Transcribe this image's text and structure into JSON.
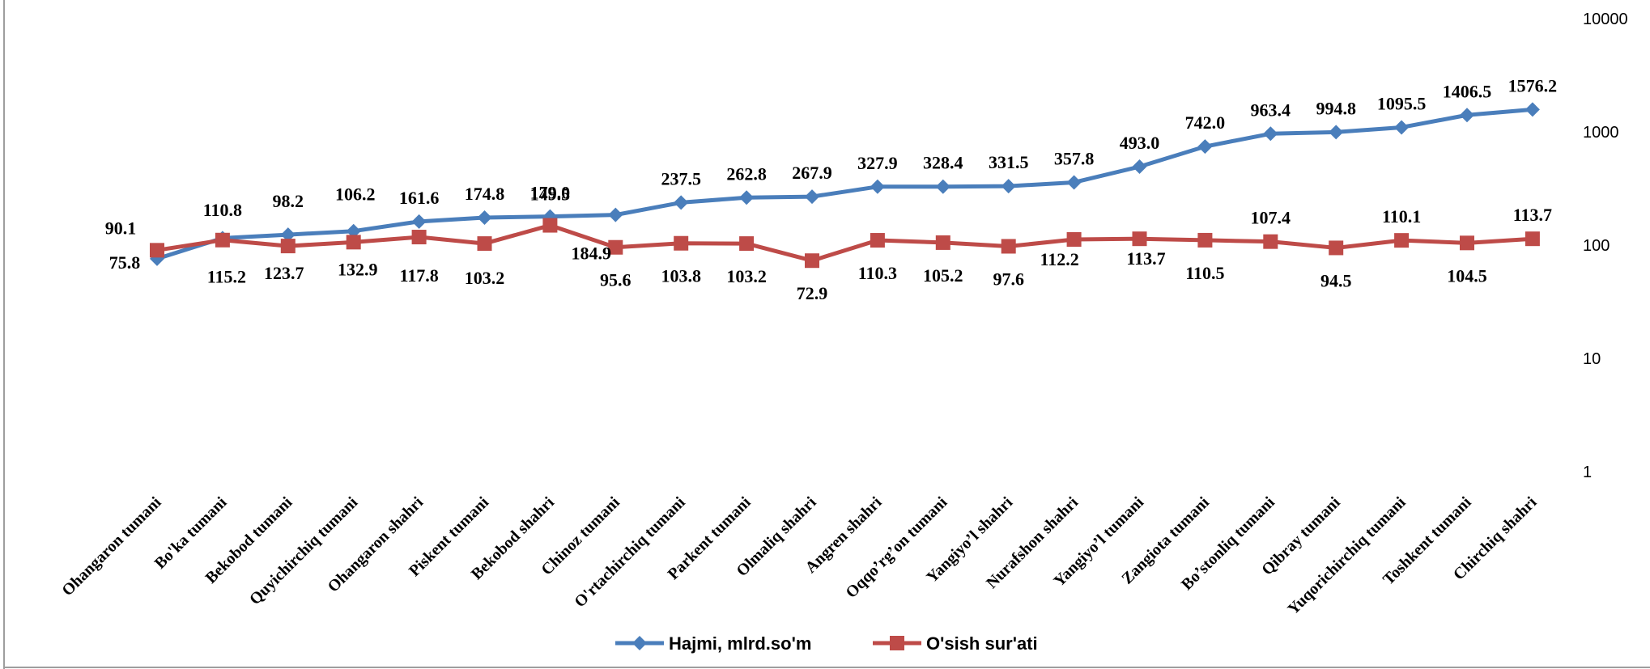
{
  "chart_data": {
    "type": "line",
    "yscale": "log",
    "ylim": [
      1,
      10000
    ],
    "y_ticks": [
      "10000",
      "1000",
      "100",
      "10",
      "1"
    ],
    "grid": false,
    "legend_position": "bottom",
    "categories": [
      "Ohangaron tumani",
      "Bo'ka tumani",
      "Bekobod tumani",
      "Quyichirchiq tumani",
      "Ohangaron shahri",
      "Piskent tumani",
      "Bekobod shahri",
      "Chinoz  tumani",
      "O'rtachirchiq tumani",
      "Parkent tumani",
      "Olmaliq shahri",
      "Angren shahri",
      "Oqqo’rg’on tumani",
      "Yangiyo’l shahri",
      "Nurafshon shahri",
      "Yangiyo’l  tumani",
      "Zangiota tumani",
      "Bo’stonliq tumani",
      "Qibray tumani",
      "Yuqorichirchiq tumani",
      "Toshkent  tumani",
      "Chirchiq shahri"
    ],
    "series": [
      {
        "name": "Hajmi, mlrd.so'm",
        "color": "#4a7ebb",
        "marker": "diamond",
        "values": [
          75.8,
          115.2,
          123.7,
          132.9,
          161.6,
          174.8,
          179.0,
          184.9,
          237.5,
          262.8,
          267.9,
          327.9,
          328.4,
          331.5,
          357.8,
          493.0,
          742.0,
          963.4,
          994.8,
          1095.5,
          1406.5,
          1576.2
        ],
        "labels": [
          "75.8",
          "115.2",
          "123.7",
          "132.9",
          "161.6",
          "174.8",
          "179.0",
          "184.9",
          "237.5",
          "262.8",
          "267.9",
          "327.9",
          "328.4",
          "331.5",
          "357.8",
          "493.0",
          "742.0",
          "963.4",
          "994.8",
          "1095.5",
          "1406.5",
          "1576.2"
        ]
      },
      {
        "name": "O'sish sur'ati",
        "color": "#be4b48",
        "marker": "square",
        "values": [
          90.1,
          110.8,
          98.2,
          106.2,
          117.8,
          103.2,
          149.5,
          95.6,
          103.8,
          103.2,
          72.9,
          110.3,
          105.2,
          97.6,
          112.2,
          113.7,
          110.5,
          107.4,
          94.5,
          110.1,
          104.5,
          113.7
        ],
        "labels": [
          "90.1",
          "110.8",
          "98.2",
          "106.2",
          "117.8",
          "103.2",
          "149.5",
          "95.6",
          "103.8",
          "103.2",
          "72.9",
          "110.3",
          "105.2",
          "97.6",
          "112.2",
          "113.7",
          "110.5",
          "107.4",
          "94.5",
          "110.1",
          "104.5",
          "113.7"
        ]
      }
    ]
  }
}
